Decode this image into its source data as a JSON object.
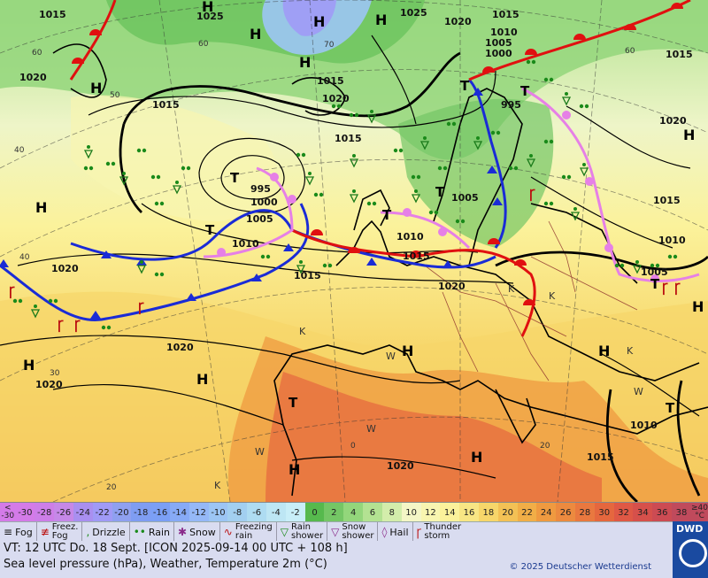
{
  "map": {
    "pressure_labels": [
      "1015",
      "1025",
      "1025",
      "1020",
      "1015",
      "1015",
      "1010",
      "1005",
      "1000",
      "1020",
      "995",
      "1015",
      "1020",
      "1015",
      "1015",
      "995",
      "1000",
      "1005",
      "1010",
      "1005",
      "1010",
      "1015",
      "1015",
      "1020",
      "1010",
      "1020",
      "1015",
      "1005",
      "1020",
      "1020",
      "1020",
      "1020",
      "1010",
      "1015",
      "1020"
    ],
    "systems": [
      "H",
      "H",
      "H",
      "H",
      "H",
      "H",
      "H",
      "H",
      "H",
      "H",
      "H",
      "H",
      "H",
      "H",
      "H",
      "T",
      "T",
      "T",
      "T",
      "T",
      "T",
      "T",
      "T",
      "T"
    ],
    "latitude_labels": [
      "60",
      "70",
      "50",
      "40",
      "30",
      "20",
      "0"
    ],
    "weather_marks": [
      "K",
      "K",
      "K",
      "K",
      "W",
      "W",
      "W",
      "W",
      "K"
    ]
  },
  "temperature_scale": {
    "low_top": "<",
    "low_bottom": "-30",
    "values": [
      "-30",
      "-28",
      "-26",
      "-24",
      "-22",
      "-20",
      "-18",
      "-16",
      "-14",
      "-12",
      "-10",
      "-8",
      "-6",
      "-4",
      "-2",
      "0",
      "2",
      "4",
      "6",
      "8",
      "10",
      "12",
      "14",
      "16",
      "18",
      "20",
      "22",
      "24",
      "26",
      "28",
      "30",
      "32",
      "34",
      "36",
      "38"
    ],
    "high_top": "≥40",
    "high_bottom": "°C",
    "colors": [
      "#d47be8",
      "#cd7ee8",
      "#c688e8",
      "#a98ff0",
      "#a09af6",
      "#8fa0f0",
      "#7f9df2",
      "#7b9ff5",
      "#87aaf6",
      "#95b8f7",
      "#9cc5f4",
      "#a2cff0",
      "#aedcf2",
      "#bde6f4",
      "#c8eef8",
      "#56b94d",
      "#74c665",
      "#93d67b",
      "#b3e292",
      "#d3edab",
      "#f4f6c6",
      "#f8f5b0",
      "#fbf29b",
      "#f8e684",
      "#f7d66a",
      "#f3c155",
      "#f1ae47",
      "#ef9a40",
      "#ec8a3f",
      "#e9783f",
      "#e5673e",
      "#df5845",
      "#d6504b",
      "#cc4b53",
      "#c04a5c"
    ]
  },
  "legend": [
    {
      "icon": "fog-icon",
      "label": "Fog"
    },
    {
      "icon": "freezing-fog-icon",
      "label": "Freez.",
      "label2": "Fog"
    },
    {
      "icon": "drizzle-icon",
      "label": "Drizzle"
    },
    {
      "icon": "rain-icon",
      "label": "Rain"
    },
    {
      "icon": "snow-icon",
      "label": "Snow"
    },
    {
      "icon": "freezing-rain-icon",
      "label": "Freezing",
      "label2": "rain"
    },
    {
      "icon": "rain-shower-icon",
      "label": "Rain",
      "label2": "shower"
    },
    {
      "icon": "snow-shower-icon",
      "label": "Snow",
      "label2": "shower"
    },
    {
      "icon": "hail-icon",
      "label": "Hail"
    },
    {
      "icon": "thunderstorm-icon",
      "label": "Thunder",
      "label2": "storm"
    }
  ],
  "info": {
    "valid_time": "VT: 12 UTC Do.   18 Sept. [ICON 2025-09-14  00 UTC + 108 h]",
    "description": "Sea level pressure (hPa), Weather, Temperature 2m (°C)",
    "copyright": "© 2025 Deutscher Wetterdienst",
    "brand": "DWD"
  }
}
